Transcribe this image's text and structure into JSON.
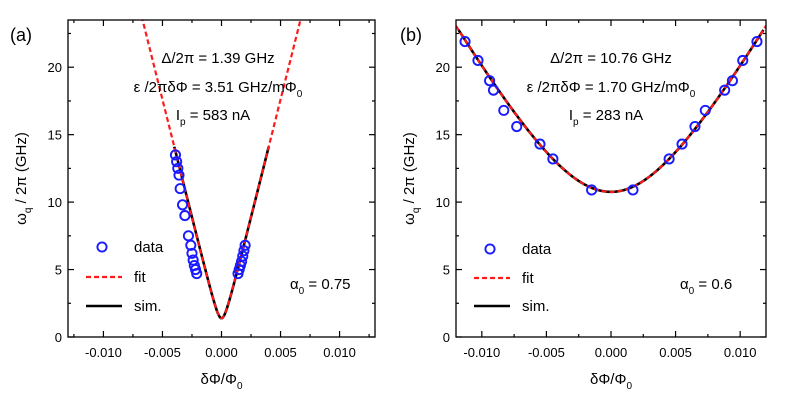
{
  "figure_caption": "",
  "chart_data": [
    {
      "type": "scatter",
      "panel_label": "(a)",
      "xlabel_main": "δΦ/Φ",
      "xlabel_sub": "0",
      "ylabel_main": "ω",
      "ylabel_sub": "q",
      "ylabel_rest": "/ 2π  (GHz)",
      "xlim": [
        -0.013,
        0.013
      ],
      "ylim": [
        0,
        23.5
      ],
      "xticks": [
        -0.01,
        -0.005,
        0.0,
        0.005,
        0.01
      ],
      "xtick_labels": [
        "-0.010",
        "-0.005",
        "0.000",
        "0.005",
        "0.010"
      ],
      "yticks": [
        0,
        5,
        10,
        15,
        20
      ],
      "ytick_labels": [
        "0",
        "5",
        "10",
        "15",
        "20"
      ],
      "annotations": {
        "line1": "Δ/2π = 1.39 GHz",
        "line2_main": "ε /2πδΦ = 3.51 GHz/mΦ",
        "line2_sub": "0",
        "line3_main": "I",
        "line3_sub": "p",
        "line3_rest": "= 583 nA",
        "alpha_main": "α",
        "alpha_sub": "0",
        "alpha_rest": "= 0.75"
      },
      "params": {
        "delta_ghz": 1.39,
        "slope_ghz_per_mphi0": 3.51
      },
      "legend": {
        "data": "data",
        "fit": "fit",
        "sim": "sim."
      },
      "data_points": [
        [
          -0.0039,
          13.5
        ],
        [
          -0.0038,
          13.0
        ],
        [
          -0.0037,
          12.5
        ],
        [
          -0.0036,
          12.0
        ],
        [
          -0.0035,
          11.0
        ],
        [
          -0.0033,
          9.8
        ],
        [
          -0.0031,
          9.0
        ],
        [
          -0.0028,
          7.5
        ],
        [
          -0.0026,
          6.8
        ],
        [
          -0.0025,
          6.2
        ],
        [
          -0.0024,
          5.7
        ],
        [
          -0.0023,
          5.3
        ],
        [
          -0.0022,
          5.0
        ],
        [
          -0.0021,
          4.7
        ],
        [
          0.0014,
          4.7
        ],
        [
          0.0015,
          5.0
        ],
        [
          0.0016,
          5.3
        ],
        [
          0.0017,
          5.6
        ],
        [
          0.0018,
          6.0
        ],
        [
          0.0019,
          6.4
        ],
        [
          0.002,
          6.8
        ]
      ],
      "sim_range": [
        -0.004,
        0.004
      ]
    },
    {
      "type": "scatter",
      "panel_label": "(b)",
      "xlabel_main": "δΦ/Φ",
      "xlabel_sub": "0",
      "ylabel_main": "ω",
      "ylabel_sub": "q",
      "ylabel_rest": "/ 2π  (GHz)",
      "xlim": [
        -0.012,
        0.012
      ],
      "ylim": [
        0,
        23.5
      ],
      "xticks": [
        -0.01,
        -0.005,
        0.0,
        0.005,
        0.01
      ],
      "xtick_labels": [
        "-0.010",
        "-0.005",
        "0.000",
        "0.005",
        "0.010"
      ],
      "yticks": [
        0,
        5,
        10,
        15,
        20
      ],
      "ytick_labels": [
        "0",
        "5",
        "10",
        "15",
        "20"
      ],
      "annotations": {
        "line1": "Δ/2π = 10.76 GHz",
        "line2_main": "ε /2πδΦ = 1.70 GHz/mΦ",
        "line2_sub": "0",
        "line3_main": "I",
        "line3_sub": "p",
        "line3_rest": "= 283 nA",
        "alpha_main": "α",
        "alpha_sub": "0",
        "alpha_rest": "= 0.6"
      },
      "params": {
        "delta_ghz": 10.76,
        "slope_ghz_per_mphi0": 1.7
      },
      "legend": {
        "data": "data",
        "fit": "fit",
        "sim": "sim."
      },
      "data_points": [
        [
          -0.0113,
          21.9
        ],
        [
          -0.0103,
          20.5
        ],
        [
          -0.0094,
          19.0
        ],
        [
          -0.0091,
          18.3
        ],
        [
          -0.0083,
          16.8
        ],
        [
          -0.0073,
          15.6
        ],
        [
          -0.0055,
          14.3
        ],
        [
          -0.0045,
          13.2
        ],
        [
          -0.0015,
          10.9
        ],
        [
          0.0017,
          10.9
        ],
        [
          0.0045,
          13.2
        ],
        [
          0.0055,
          14.3
        ],
        [
          0.0065,
          15.6
        ],
        [
          0.0073,
          16.8
        ],
        [
          0.0088,
          18.3
        ],
        [
          0.0094,
          19.0
        ],
        [
          0.0102,
          20.5
        ],
        [
          0.0113,
          21.9
        ]
      ],
      "sim_range": [
        -0.0118,
        0.0118
      ]
    }
  ]
}
